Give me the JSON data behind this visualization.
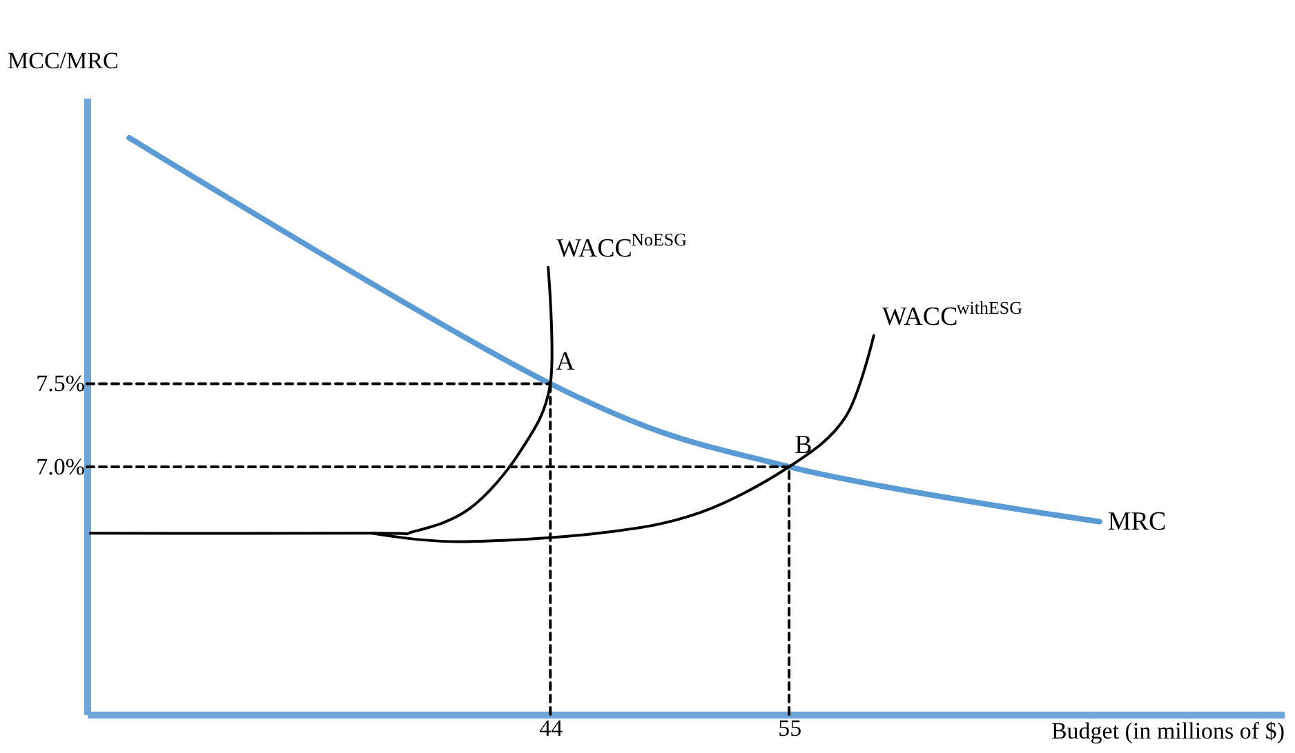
{
  "chart_data": {
    "type": "line",
    "xlabel": "Budget (in millions of $)",
    "ylabel": "MCC/MRC",
    "xlim": [
      22.65,
      77.8
    ],
    "ylim": [
      5.51,
      9.22
    ],
    "xticks": [
      44,
      55
    ],
    "yticks": [
      {
        "value": 7.0,
        "label": "7.0%"
      },
      {
        "value": 7.5,
        "label": "7.5%"
      }
    ],
    "grid": false,
    "marker": "none",
    "series": [
      {
        "name": "MRC",
        "color": "#5b9bd5",
        "x": [
          24.6,
          44,
          55,
          69.3
        ],
        "values": [
          8.98,
          7.5,
          7.0,
          6.67
        ]
      },
      {
        "name": "WACC$^{NoESG}$",
        "color": "#000000",
        "x": [
          22.8,
          35.8,
          37.7,
          40.3,
          42.6,
          44,
          43.9
        ],
        "values": [
          6.6,
          6.6,
          6.61,
          6.75,
          7.09,
          7.5,
          8.2
        ]
      },
      {
        "name": "WACC$^{withESG}$",
        "color": "#000000",
        "x": [
          35.8,
          39.7,
          46.2,
          50.8,
          55,
          57.6,
          58.9
        ],
        "values": [
          6.6,
          6.55,
          6.6,
          6.72,
          7.0,
          7.3,
          7.79
        ]
      },
      {
        "color": "#000000",
        "line_style": "dashed",
        "x": [
          22.65,
          44
        ],
        "values": [
          7.5,
          7.5
        ]
      },
      {
        "color": "#000000",
        "line_style": "dashed",
        "x": [
          22.65,
          55
        ],
        "values": [
          7.0,
          7.0
        ]
      },
      {
        "color": "#000000",
        "line_style": "dashed",
        "x": [
          44,
          44
        ],
        "values": [
          5.51,
          7.5
        ]
      },
      {
        "color": "#000000",
        "line_style": "dashed",
        "x": [
          55,
          55
        ],
        "values": [
          5.51,
          7.0
        ]
      }
    ],
    "annotations": [
      {
        "text": "A",
        "x": 44,
        "y": 7.5
      },
      {
        "text": "B",
        "x": 55,
        "y": 7.0
      }
    ]
  }
}
